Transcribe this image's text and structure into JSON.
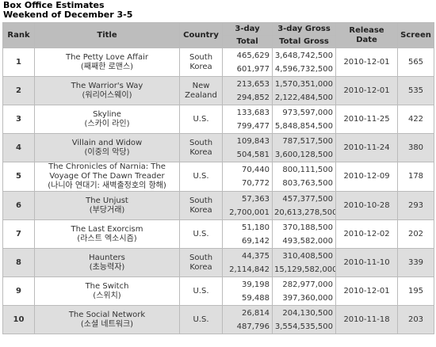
{
  "header": {
    "title": "Box Office Estimates",
    "subtitle": "Weekend of December 3-5"
  },
  "table": {
    "headers": {
      "rank": "Rank",
      "title": "Title",
      "country": "Country",
      "three_day": "3-day",
      "total": "Total",
      "gross": "3-day Gross",
      "total_gross": "Total Gross",
      "release": "Release Date",
      "screen": "Screen"
    },
    "rows": [
      {
        "rank": "1",
        "title": "The Petty Love Affair",
        "korean": "(째째한 로맨스)",
        "country": "South Korea",
        "three_day": "465,629",
        "total": "601,977",
        "gross": "3,648,742,500",
        "total_gross": "4,596,732,500",
        "release": "2010-12-01",
        "screen": "565"
      },
      {
        "rank": "2",
        "title": "The Warrior's Way",
        "korean": "(워리어스웨이)",
        "country": "New Zealand",
        "three_day": "213,653",
        "total": "294,852",
        "gross": "1,570,351,000",
        "total_gross": "2,122,484,500",
        "release": "2010-12-01",
        "screen": "535"
      },
      {
        "rank": "3",
        "title": "Skyline",
        "korean": "(스카이 라인)",
        "country": "U.S.",
        "three_day": "133,683",
        "total": "799,477",
        "gross": "973,597,000",
        "total_gross": "5,848,854,500",
        "release": "2010-11-25",
        "screen": "422"
      },
      {
        "rank": "4",
        "title": "Villain and Widow",
        "korean": "(이중의 악당)",
        "country": "South Korea",
        "three_day": "109,843",
        "total": "504,581",
        "gross": "787,517,500",
        "total_gross": "3,600,128,500",
        "release": "2010-11-24",
        "screen": "380"
      },
      {
        "rank": "5",
        "title": "The Chronicles of Narnia: The Voyage Of The Dawn Treader",
        "korean": "(나니아 연대기: 새벽출정호의 항해)",
        "country": "U.S.",
        "three_day": "70,440",
        "total": "70,772",
        "gross": "800,111,500",
        "total_gross": "803,763,500",
        "release": "2010-12-09",
        "screen": "178"
      },
      {
        "rank": "6",
        "title": "The Unjust",
        "korean": "(부당거래)",
        "country": "South Korea",
        "three_day": "57,363",
        "total": "2,700,001",
        "gross": "457,377,500",
        "total_gross": "20,613,278,500",
        "release": "2010-10-28",
        "screen": "293"
      },
      {
        "rank": "7",
        "title": "The Last Exorcism",
        "korean": "(라스트 엑소시즘)",
        "country": "U.S.",
        "three_day": "51,180",
        "total": "69,142",
        "gross": "370,188,500",
        "total_gross": "493,582,000",
        "release": "2010-12-02",
        "screen": "202"
      },
      {
        "rank": "8",
        "title": "Haunters",
        "korean": "(초능력자)",
        "country": "South Korea",
        "three_day": "44,375",
        "total": "2,114,842",
        "gross": "310,408,500",
        "total_gross": "15,129,582,000",
        "release": "2010-11-10",
        "screen": "339"
      },
      {
        "rank": "9",
        "title": "The Switch",
        "korean": "(스위치)",
        "country": "U.S.",
        "three_day": "39,198",
        "total": "59,488",
        "gross": "282,977,000",
        "total_gross": "397,360,000",
        "release": "2010-12-01",
        "screen": "195"
      },
      {
        "rank": "10",
        "title": "The Social Network",
        "korean": "(소셜 네트워크)",
        "country": "U.S.",
        "three_day": "26,814",
        "total": "487,796",
        "gross": "204,130,500",
        "total_gross": "3,554,535,500",
        "release": "2010-11-18",
        "screen": "203"
      }
    ]
  }
}
